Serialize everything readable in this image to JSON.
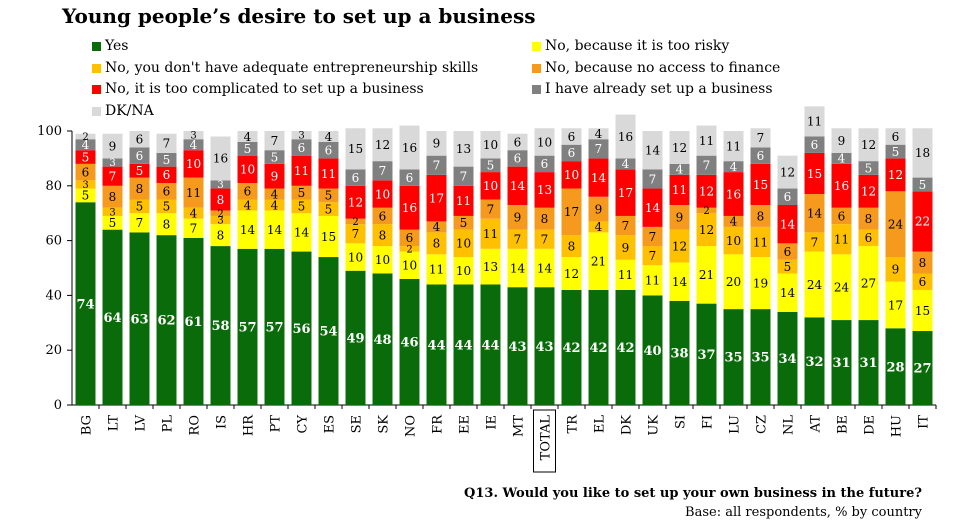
{
  "chart_data": {
    "type": "bar",
    "stacked": true,
    "title": "Young people’s desire to set up a business",
    "categories": [
      "BG",
      "LT",
      "LV",
      "PL",
      "RO",
      "IS",
      "HR",
      "PT",
      "CY",
      "ES",
      "SE",
      "SK",
      "NO",
      "FR",
      "EE",
      "IE",
      "MT",
      "TOTAL",
      "TR",
      "EL",
      "DK",
      "UK",
      "SI",
      "FI",
      "LU",
      "CZ",
      "NL",
      "AT",
      "BE",
      "DE",
      "HU",
      "IT"
    ],
    "highlight_category": "TOTAL",
    "ylim": [
      0,
      100
    ],
    "yticks": [
      "0",
      "20",
      "40",
      "60",
      "80",
      "100"
    ],
    "series": [
      {
        "name": "Yes",
        "color": "#0a6b0a",
        "label_color": "#ffffff",
        "values": [
          74,
          64,
          63,
          62,
          61,
          58,
          57,
          57,
          56,
          54,
          49,
          48,
          46,
          44,
          44,
          44,
          43,
          43,
          42,
          42,
          42,
          40,
          38,
          37,
          35,
          35,
          34,
          32,
          31,
          31,
          28,
          27
        ]
      },
      {
        "name": "No, because it is too risky",
        "color": "#ffff00",
        "label_color": "#000000",
        "values": [
          5,
          5,
          7,
          8,
          7,
          8,
          14,
          14,
          14,
          15,
          10,
          10,
          10,
          11,
          10,
          13,
          14,
          14,
          12,
          21,
          11,
          11,
          14,
          21,
          20,
          19,
          14,
          24,
          24,
          27,
          17,
          15
        ]
      },
      {
        "name": "No, you don't have adequate entrepreneurship skills",
        "color": "#ffc000",
        "label_color": "#000000",
        "values": [
          3,
          3,
          5,
          5,
          4,
          3,
          4,
          4,
          5,
          5,
          7,
          8,
          2,
          8,
          10,
          11,
          7,
          7,
          8,
          4,
          9,
          7,
          12,
          12,
          10,
          11,
          5,
          7,
          11,
          6,
          9,
          6
        ]
      },
      {
        "name": "No, because no access to finance",
        "color": "#f59a1c",
        "label_color": "#000000",
        "values": [
          6,
          8,
          8,
          6,
          11,
          2,
          6,
          4,
          5,
          5,
          2,
          6,
          6,
          4,
          5,
          7,
          9,
          8,
          17,
          9,
          7,
          7,
          9,
          2,
          4,
          8,
          6,
          14,
          6,
          8,
          24,
          8
        ]
      },
      {
        "name": "No, it is too complicated to set up a business",
        "color": "#ff0000",
        "label_color": "#ffffff",
        "values": [
          5,
          7,
          5,
          6,
          10,
          8,
          10,
          9,
          11,
          11,
          12,
          10,
          16,
          17,
          11,
          10,
          14,
          13,
          10,
          14,
          17,
          14,
          11,
          12,
          16,
          15,
          14,
          15,
          16,
          12,
          12,
          22
        ]
      },
      {
        "name": "I have already set up a business",
        "color": "#808080",
        "label_color": "#ffffff",
        "values": [
          4,
          3,
          6,
          5,
          4,
          3,
          5,
          5,
          6,
          6,
          6,
          7,
          6,
          7,
          7,
          5,
          6,
          6,
          6,
          7,
          4,
          7,
          4,
          7,
          4,
          6,
          6,
          6,
          4,
          5,
          5,
          5
        ]
      },
      {
        "name": "DK/NA",
        "color": "#d9d9d9",
        "label_color": "#000000",
        "values": [
          2,
          9,
          6,
          7,
          3,
          16,
          4,
          7,
          3,
          4,
          15,
          12,
          16,
          9,
          13,
          10,
          6,
          10,
          6,
          4,
          16,
          14,
          12,
          11,
          11,
          7,
          12,
          11,
          9,
          12,
          6,
          18
        ]
      }
    ],
    "legend": [
      {
        "label": "Yes",
        "color": "#0a6b0a"
      },
      {
        "label": "No, because it is too risky",
        "color": "#ffff00"
      },
      {
        "label": "No, you don't have adequate entrepreneurship skills",
        "color": "#ffc000"
      },
      {
        "label": "No, because no access to finance",
        "color": "#f59a1c"
      },
      {
        "label": "No, it is too complicated to set up a business",
        "color": "#ff0000"
      },
      {
        "label": "I have already set up a business",
        "color": "#808080"
      },
      {
        "label": "DK/NA",
        "color": "#d9d9d9"
      }
    ],
    "question": "Q13. Would you like to set up your own business in the future?",
    "base": "Base: all respondents, % by country"
  }
}
